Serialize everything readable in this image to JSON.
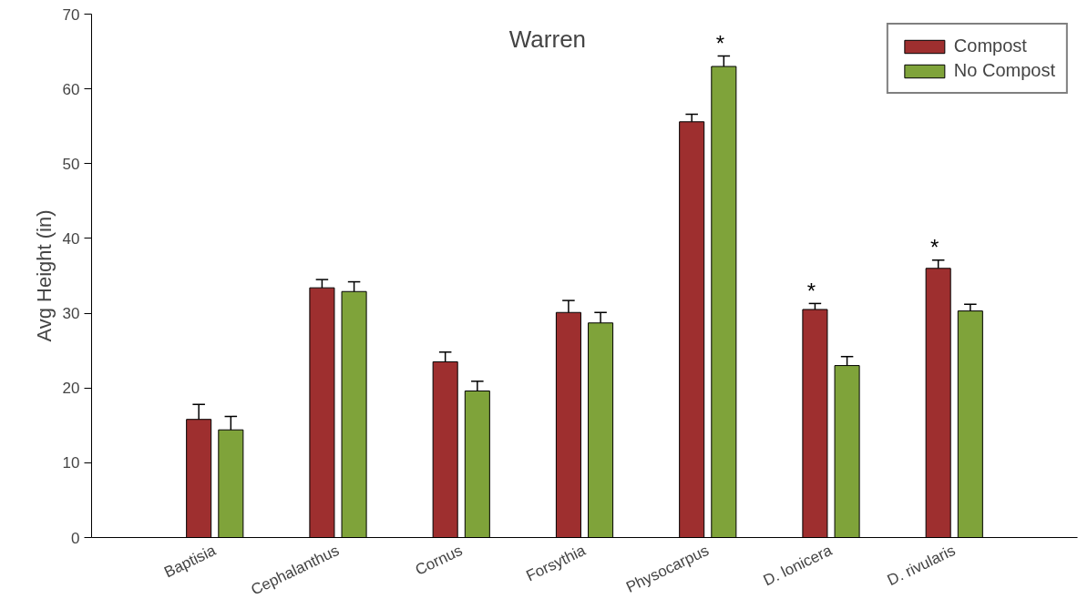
{
  "chart_data": {
    "type": "bar",
    "title": "Warren",
    "ylabel": "Avg Height (in)",
    "categories": [
      "Baptisia",
      "Cephalanthus",
      "Cornus",
      "Forsythia",
      "Physocarpus",
      "D. lonicera",
      "D. rivularis"
    ],
    "series": [
      {
        "name": "Compost",
        "color": "#9e2f2f",
        "values": [
          15.8,
          33.4,
          23.5,
          30.1,
          55.6,
          30.5,
          36.0
        ],
        "errors": [
          [
            15.8,
            17.8
          ],
          [
            33.4,
            34.5
          ],
          [
            23.5,
            24.8
          ],
          [
            30.1,
            31.7
          ],
          [
            55.6,
            56.6
          ],
          [
            30.5,
            31.3
          ],
          [
            36.0,
            37.1
          ]
        ]
      },
      {
        "name": "No Compost",
        "color": "#7fa33a",
        "values": [
          14.4,
          32.9,
          19.6,
          28.7,
          63.0,
          23.0,
          30.3
        ],
        "errors": [
          [
            14.4,
            16.2
          ],
          [
            32.9,
            34.2
          ],
          [
            19.6,
            20.9
          ],
          [
            28.7,
            30.1
          ],
          [
            63.0,
            64.4
          ],
          [
            23.0,
            24.2
          ],
          [
            30.3,
            31.2
          ]
        ]
      }
    ],
    "ylim": [
      0,
      70
    ],
    "yticks": [
      0,
      10,
      20,
      30,
      40,
      50,
      60,
      70
    ],
    "annotations": [
      {
        "text": "*",
        "x": "Physocarpus",
        "y": 63.0
      },
      {
        "text": "*",
        "x": "D. lonicera",
        "y": 30.5
      },
      {
        "text": "*",
        "x": "D. rivularis",
        "y": 36.0
      }
    ],
    "legend": "top right",
    "grid": false
  }
}
